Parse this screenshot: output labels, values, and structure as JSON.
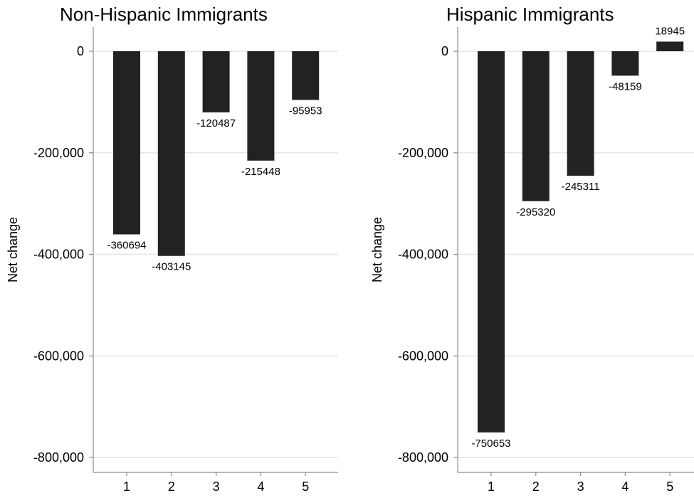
{
  "colors": {
    "bar": "#222222",
    "grid": "#e6e6e6",
    "axis": "#8c8c8c",
    "background": "#ffffff"
  },
  "chart_data": [
    {
      "type": "bar",
      "title": "Non-Hispanic Immigrants",
      "categories": [
        "1",
        "2",
        "3",
        "4",
        "5"
      ],
      "values": [
        -360694,
        -403145,
        -120487,
        -215448,
        -95953
      ],
      "data_labels": [
        "-360694",
        "-403145",
        "-120487",
        "-215448",
        "-95953"
      ],
      "xlabel": "",
      "ylabel": "Net change",
      "ylim": [
        -830000,
        45000
      ],
      "yticks": [
        0,
        -200000,
        -400000,
        -600000,
        -800000
      ],
      "ytick_labels": [
        "0",
        "-200,000",
        "-400,000",
        "-600,000",
        "-800,000"
      ],
      "grid": true,
      "legend": "none"
    },
    {
      "type": "bar",
      "title": "Hispanic Immigrants",
      "categories": [
        "1",
        "2",
        "3",
        "4",
        "5"
      ],
      "values": [
        -750653,
        -295320,
        -245311,
        -48159,
        18945
      ],
      "data_labels": [
        "-750653",
        "-295320",
        "-245311",
        "-48159",
        "18945"
      ],
      "xlabel": "",
      "ylabel": "Net change",
      "ylim": [
        -830000,
        45000
      ],
      "yticks": [
        0,
        -200000,
        -400000,
        -600000,
        -800000
      ],
      "ytick_labels": [
        "0",
        "-200,000",
        "-400,000",
        "-600,000",
        "-800,000"
      ],
      "grid": true,
      "legend": "none"
    }
  ]
}
